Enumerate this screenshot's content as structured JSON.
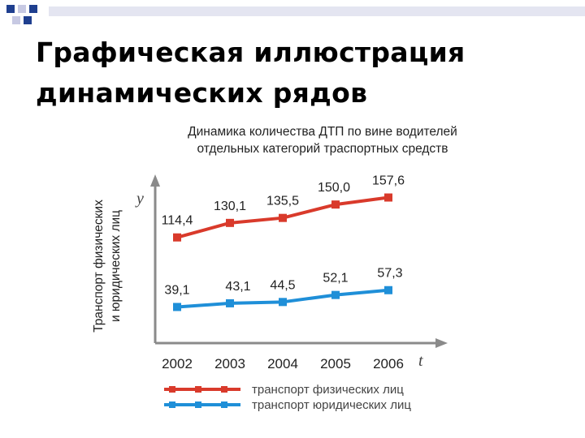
{
  "slide": {
    "title_line1": "Графическая иллюстрация",
    "title_line2": "динамических рядов"
  },
  "colors": {
    "series_red": "#d93a2b",
    "series_blue": "#1f8fd8",
    "axis": "#8a8a8a",
    "text": "#222222",
    "deco_blue": "#1f3f8f",
    "deco_light": "#c7c9e3"
  },
  "chart_data": {
    "type": "line",
    "title_line1": "Динамика количества ДТП по вине водителей",
    "title_line2": "отдельных категорий траспортных средств",
    "ylabel_line1": "Транспорт физических",
    "ylabel_line2": "и юридических лиц",
    "y_axis_symbol": "y",
    "x_axis_symbol": "t",
    "categories": [
      "2002",
      "2003",
      "2004",
      "2005",
      "2006"
    ],
    "ylim": [
      0,
      180
    ],
    "grid": false,
    "legend_position": "bottom",
    "series": [
      {
        "name": "транспорт физических лиц",
        "values": [
          114.4,
          130.1,
          135.5,
          150.0,
          157.6
        ],
        "labels": [
          "114,4",
          "130,1",
          "135,5",
          "150,0",
          "157,6"
        ],
        "color": "#d93a2b"
      },
      {
        "name": "транспорт юридических лиц",
        "values": [
          39.1,
          43.1,
          44.5,
          52.1,
          57.3
        ],
        "labels": [
          "39,1",
          "43,1",
          "44,5",
          "52,1",
          "57,3"
        ],
        "color": "#1f8fd8"
      }
    ]
  }
}
